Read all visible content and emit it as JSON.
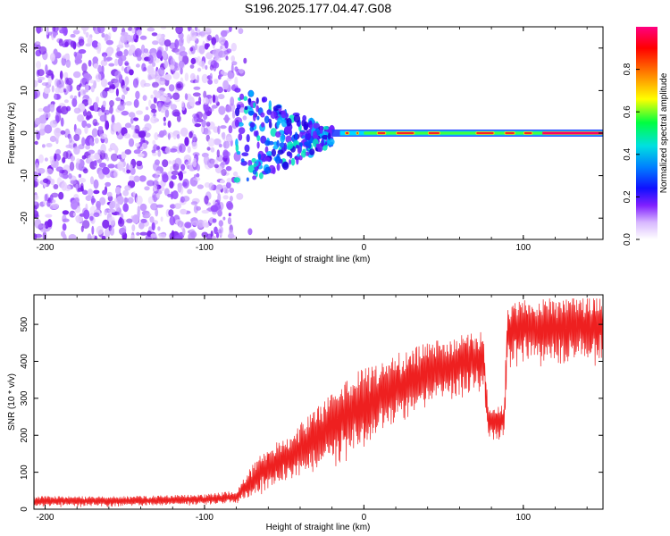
{
  "title": "S196.2025.177.04.47.G08",
  "chart_data": [
    {
      "type": "heatmap",
      "xlabel": "Height of straight line (km)",
      "ylabel": "Frequency (Hz)",
      "xlim": [
        -207,
        150
      ],
      "ylim": [
        -25,
        25
      ],
      "xticks": [
        -200,
        -100,
        0,
        100
      ],
      "xtick_labels": [
        "-200",
        "-100",
        "0",
        "100"
      ],
      "yticks": [
        20,
        10,
        0,
        -10,
        -20
      ],
      "ytick_labels": [
        "20",
        "10",
        "0",
        "-10",
        "-20"
      ],
      "colorbar": {
        "label": "Normalized spectral amplitude",
        "range": [
          0,
          1
        ],
        "ticks": [
          0,
          0.2,
          0.4,
          0.6,
          0.8
        ],
        "tick_labels": [
          "0.0",
          "0.2",
          "0.4",
          "0.6",
          "0.8"
        ],
        "colors": [
          "#ffffff",
          "#e0c8ff",
          "#a040ff",
          "#3000ff",
          "#0080ff",
          "#00e0e0",
          "#00ff40",
          "#ffff00",
          "#ff8000",
          "#ff0000",
          "#ff0080"
        ]
      },
      "description_band": {
        "noise_region_x": [
          -207,
          -70
        ],
        "transition_region_x": [
          -80,
          -20
        ],
        "tone_region_x": [
          -20,
          150
        ],
        "tone_frequency_hz": 0
      }
    },
    {
      "type": "line",
      "xlabel": "Height of straight line (km)",
      "ylabel": "SNR (10 * v/v)",
      "xlim": [
        -207,
        150
      ],
      "ylim": [
        0,
        580
      ],
      "xticks": [
        -200,
        -100,
        0,
        100
      ],
      "xtick_labels": [
        "-200",
        "-100",
        "0",
        "100"
      ],
      "yticks": [
        0,
        100,
        200,
        300,
        400,
        500
      ],
      "ytick_labels": [
        "0",
        "100",
        "200",
        "300",
        "400",
        "500"
      ],
      "series": [
        {
          "color": "#ee2020",
          "envelope_x": [
            -207,
            -150,
            -100,
            -80,
            -70,
            -60,
            -50,
            -40,
            -30,
            -20,
            -10,
            0,
            10,
            20,
            40,
            60,
            75,
            78,
            88,
            90,
            100,
            120,
            150
          ],
          "envelope_low": [
            5,
            5,
            8,
            10,
            20,
            40,
            60,
            70,
            80,
            100,
            110,
            130,
            180,
            220,
            260,
            290,
            310,
            180,
            180,
            360,
            380,
            380,
            380
          ],
          "envelope_high": [
            35,
            35,
            40,
            50,
            120,
            170,
            190,
            230,
            280,
            310,
            360,
            380,
            390,
            420,
            450,
            470,
            480,
            280,
            280,
            560,
            570,
            570,
            570
          ]
        }
      ]
    }
  ]
}
